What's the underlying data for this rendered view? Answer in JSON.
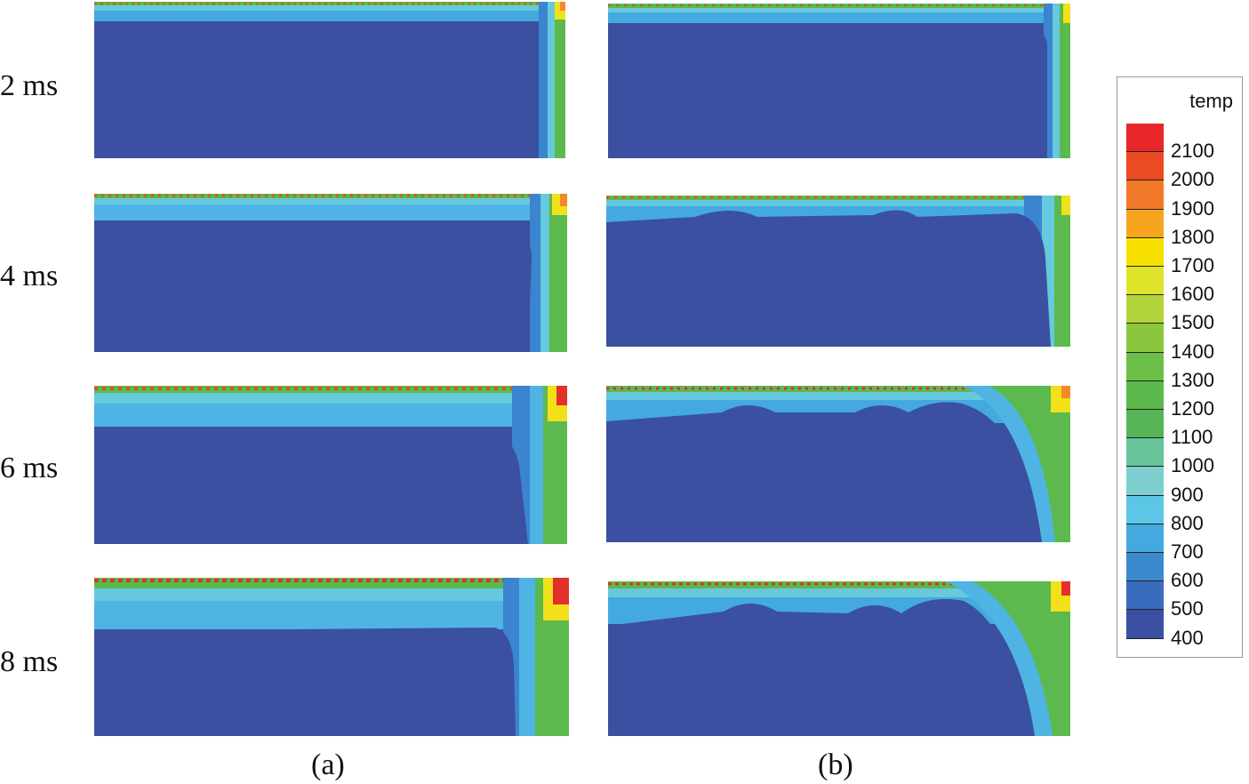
{
  "time_labels": [
    "2 ms",
    "4 ms",
    "6 ms",
    "8 ms"
  ],
  "column_labels": [
    "(a)",
    "(b)"
  ],
  "legend": {
    "title": "temp",
    "ticks": [
      "2100",
      "2000",
      "1900",
      "1800",
      "1700",
      "1600",
      "1500",
      "1400",
      "1300",
      "1200",
      "1100",
      "1000",
      "900",
      "800",
      "700",
      "600",
      "500",
      "400"
    ],
    "colors": [
      "#e8262a",
      "#ec4a22",
      "#f2782a",
      "#f7a51e",
      "#f7e000",
      "#dde42a",
      "#b3d43a",
      "#8cc63e",
      "#6cbf46",
      "#5bb84a",
      "#55b556",
      "#67c39a",
      "#7dcfcf",
      "#5cc6e6",
      "#44a9df",
      "#3b89cf",
      "#3a6cbd",
      "#3a4f9f"
    ]
  },
  "colors": {
    "deep": "#3b50a0",
    "dark_blue": "#3a62b5",
    "mid_blue": "#3b84cf",
    "light_blue": "#4fb4e3",
    "cyan": "#66c9dd",
    "green": "#5cb94d",
    "yellow_green": "#a9d33a",
    "yellow": "#f2e01a",
    "orange": "#f2892a",
    "red": "#e3302a"
  }
}
